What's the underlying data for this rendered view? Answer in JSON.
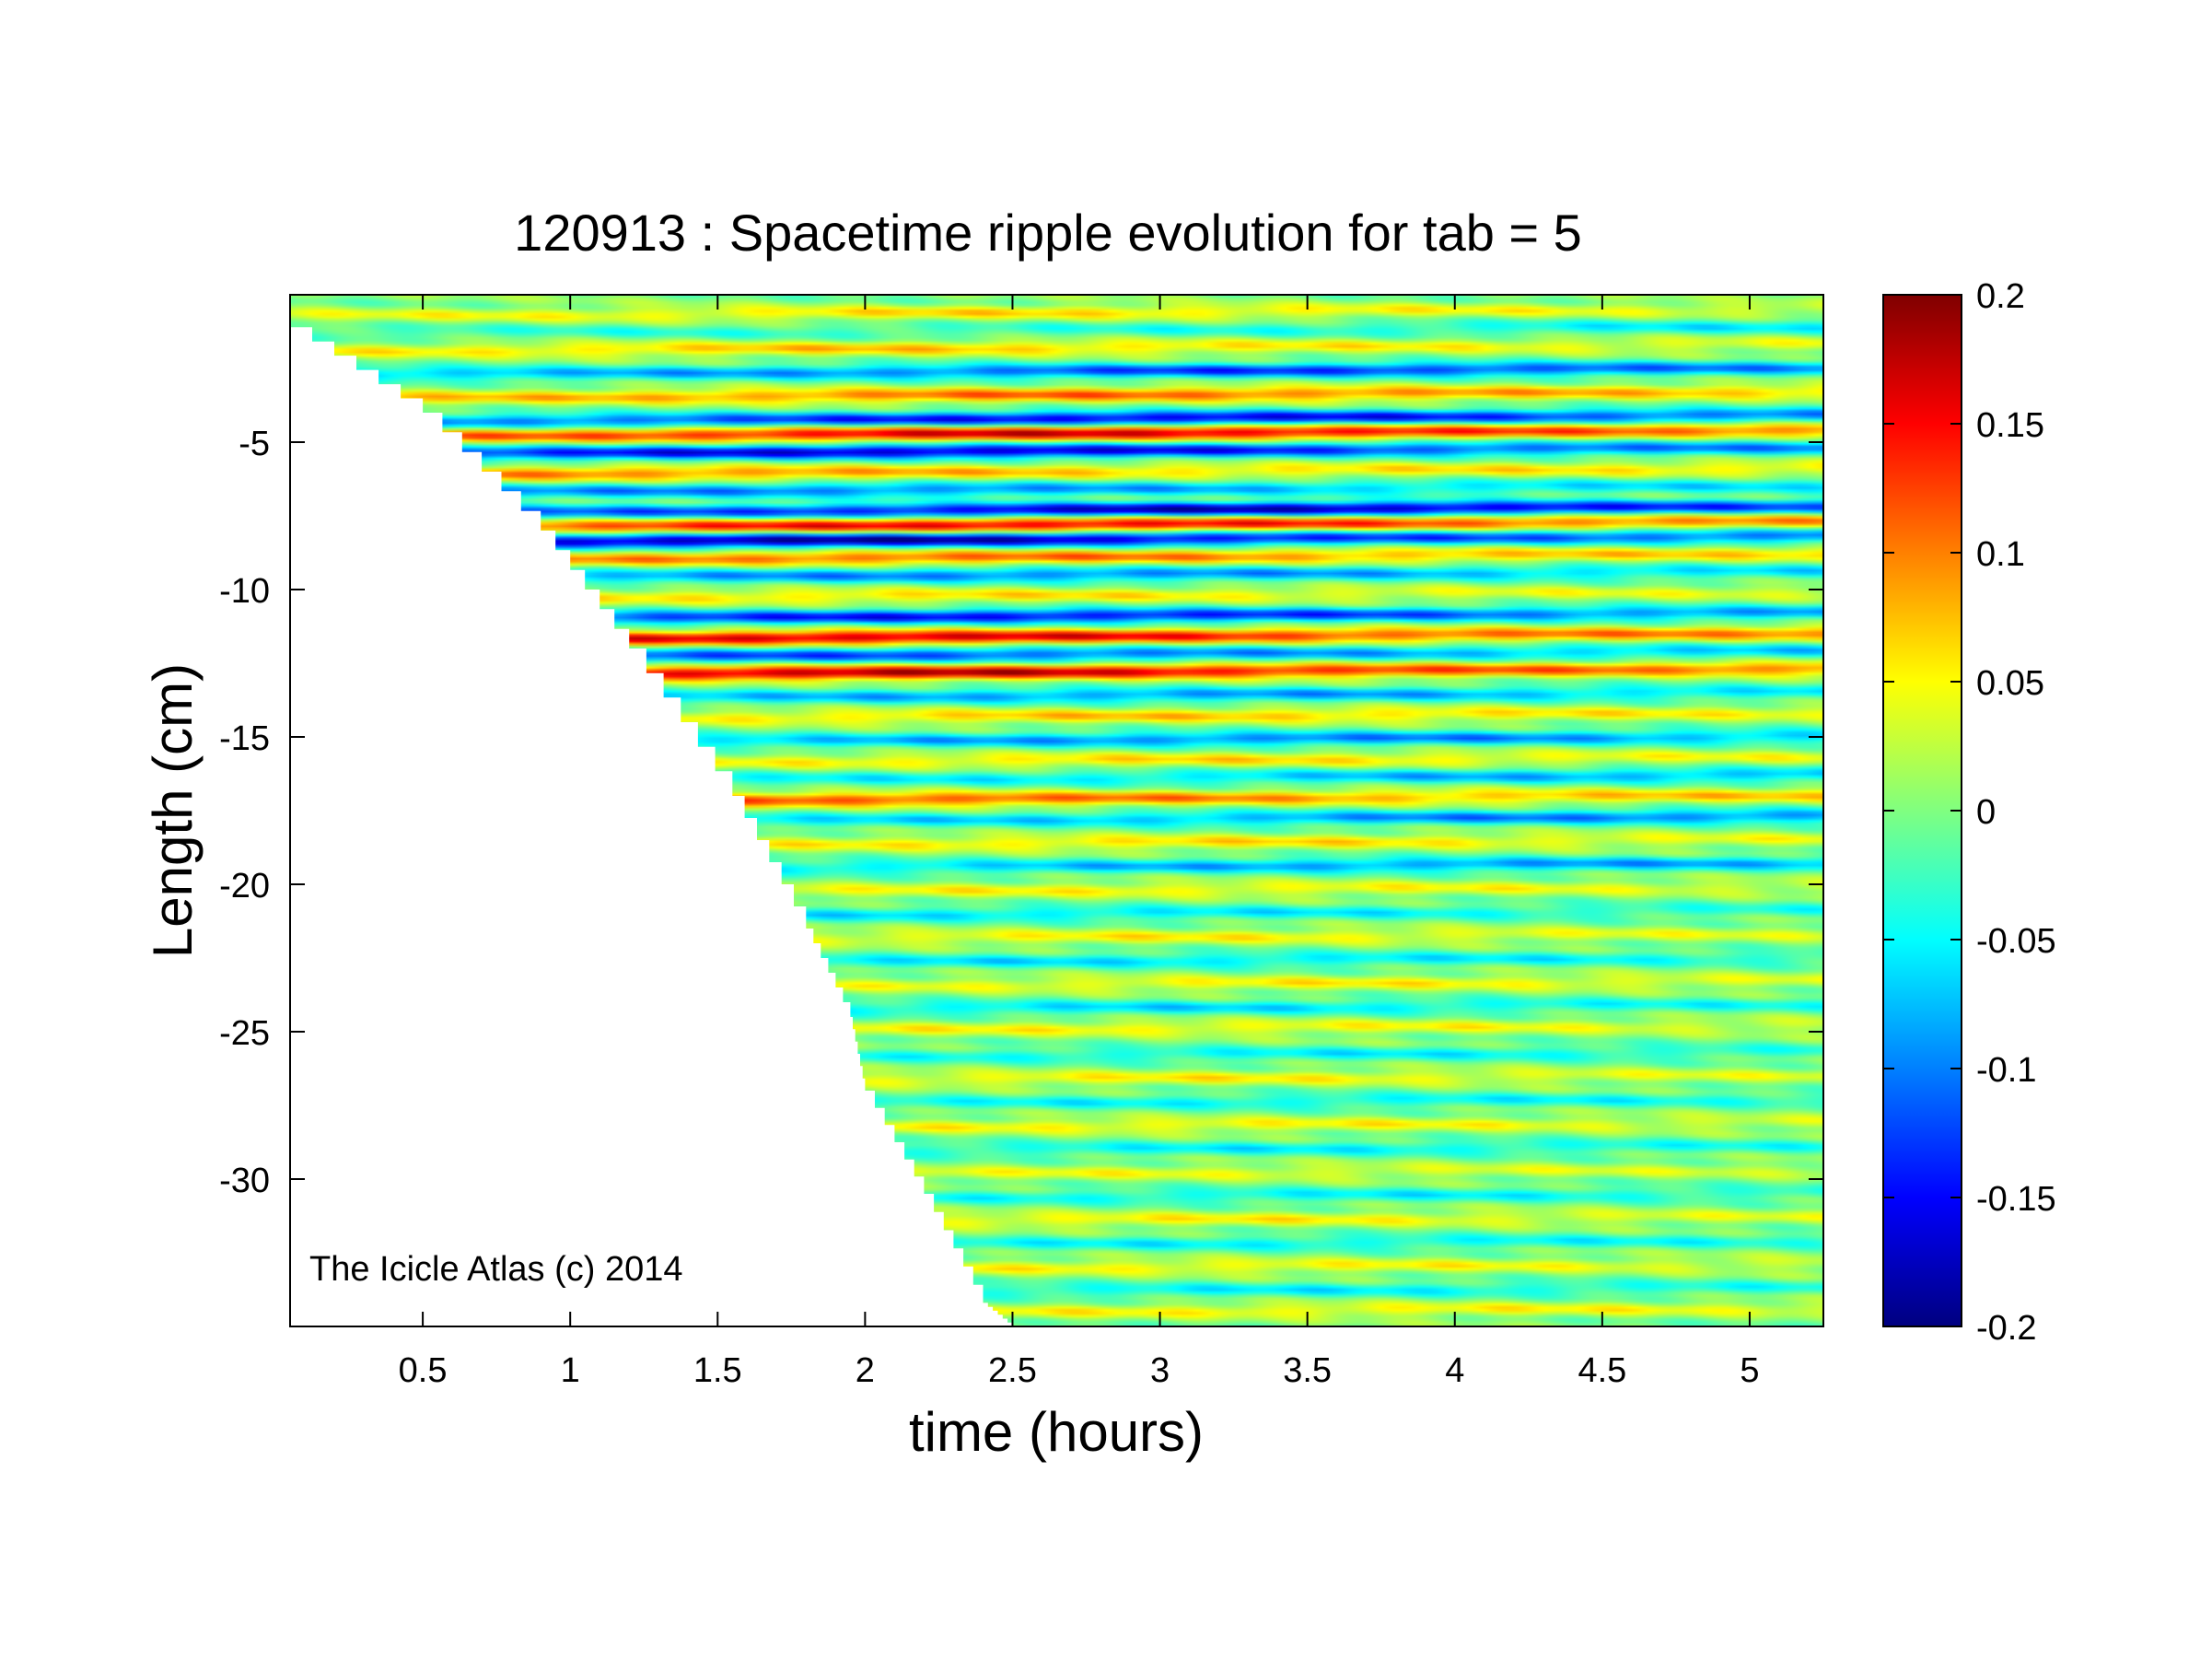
{
  "chart_data": {
    "type": "heatmap",
    "title": "120913 : Spacetime ripple evolution for tab = 5",
    "xlabel": "time (hours)",
    "ylabel": "Length (cm)",
    "annotation": "The Icicle Atlas (c) 2014",
    "xlim": [
      0.05,
      5.25
    ],
    "ylim": [
      -35,
      0
    ],
    "x_ticks": [
      0.5,
      1,
      1.5,
      2,
      2.5,
      3,
      3.5,
      4,
      4.5,
      5
    ],
    "x_tick_labels": [
      "0.5",
      "1",
      "1.5",
      "2",
      "2.5",
      "3",
      "3.5",
      "4",
      "4.5",
      "5"
    ],
    "y_ticks": [
      -5,
      -10,
      -15,
      -20,
      -25,
      -30
    ],
    "y_tick_labels": [
      "-5",
      "-10",
      "-15",
      "-20",
      "-25",
      "-30"
    ],
    "colorbar": {
      "colormap": "jet",
      "clim": [
        -0.2,
        0.2
      ],
      "ticks": [
        0.2,
        0.15,
        0.1,
        0.05,
        0,
        -0.05,
        -0.1,
        -0.15,
        -0.2
      ],
      "tick_labels": [
        "0.2",
        "0.15",
        "0.1",
        "0.05",
        "0",
        "-0.05",
        "-0.1",
        "-0.15",
        "-0.2"
      ]
    },
    "growth_front": {
      "description_hidden": true,
      "points": [
        [
          0.05,
          -1.1
        ],
        [
          0.5,
          -4.0
        ],
        [
          0.9,
          -8.0
        ],
        [
          1.2,
          -12.0
        ],
        [
          1.55,
          -17.0
        ],
        [
          1.8,
          -21.5
        ],
        [
          1.95,
          -24.5
        ],
        [
          2.0,
          -27.0
        ],
        [
          2.2,
          -30.5
        ],
        [
          2.4,
          -34.2
        ],
        [
          2.5,
          -35.0
        ]
      ]
    },
    "ripple_bands": [
      {
        "y": -0.6,
        "amp": 0.06,
        "t_peak": 2.5
      },
      {
        "y": -1.2,
        "amp": -0.05,
        "t_peak": 5.0
      },
      {
        "y": -1.8,
        "amp": 0.07,
        "t_peak": 2.0
      },
      {
        "y": -2.6,
        "amp": -0.13,
        "t_peak": 3.5
      },
      {
        "y": -3.4,
        "amp": 0.11,
        "t_peak": 2.8
      },
      {
        "y": -4.2,
        "amp": -0.16,
        "t_peak": 3.0
      },
      {
        "y": -4.7,
        "amp": 0.17,
        "t_peak": 2.7
      },
      {
        "y": -5.3,
        "amp": -0.17,
        "t_peak": 2.2
      },
      {
        "y": -6.0,
        "amp": 0.1,
        "t_peak": 0.9
      },
      {
        "y": -6.6,
        "amp": -0.1,
        "t_peak": 1.8
      },
      {
        "y": -7.3,
        "amp": -0.18,
        "t_peak": 3.3
      },
      {
        "y": -7.8,
        "amp": 0.16,
        "t_peak": 2.5
      },
      {
        "y": -8.3,
        "amp": -0.19,
        "t_peak": 1.9
      },
      {
        "y": -8.9,
        "amp": 0.11,
        "t_peak": 2.2
      },
      {
        "y": -9.5,
        "amp": -0.1,
        "t_peak": 2.5
      },
      {
        "y": -10.2,
        "amp": 0.06,
        "t_peak": 2.0
      },
      {
        "y": -10.9,
        "amp": -0.15,
        "t_peak": 2.5
      },
      {
        "y": -11.6,
        "amp": 0.17,
        "t_peak": 2.0
      },
      {
        "y": -12.2,
        "amp": -0.12,
        "t_peak": 1.9
      },
      {
        "y": -12.8,
        "amp": 0.18,
        "t_peak": 2.1
      },
      {
        "y": -13.6,
        "amp": -0.09,
        "t_peak": 3.0
      },
      {
        "y": -14.3,
        "amp": 0.07,
        "t_peak": 3.0
      },
      {
        "y": -15.1,
        "amp": -0.1,
        "t_peak": 3.5
      },
      {
        "y": -15.8,
        "amp": 0.06,
        "t_peak": 3.0
      },
      {
        "y": -16.4,
        "amp": -0.08,
        "t_peak": 4.5
      },
      {
        "y": -17.1,
        "amp": 0.12,
        "t_peak": 1.9
      },
      {
        "y": -17.8,
        "amp": -0.1,
        "t_peak": 4.5
      },
      {
        "y": -18.6,
        "amp": 0.06,
        "t_peak": 3.0
      },
      {
        "y": -19.4,
        "amp": -0.09,
        "t_peak": 4.0
      },
      {
        "y": -20.2,
        "amp": 0.05,
        "t_peak": 3.0
      },
      {
        "y": -21.0,
        "amp": -0.06,
        "t_peak": 2.5
      },
      {
        "y": -21.8,
        "amp": 0.05,
        "t_peak": 3.0
      },
      {
        "y": -22.6,
        "amp": -0.06,
        "t_peak": 3.0
      },
      {
        "y": -23.4,
        "amp": 0.05,
        "t_peak": 3.5
      },
      {
        "y": -24.2,
        "amp": -0.06,
        "t_peak": 3.0
      },
      {
        "y": -24.9,
        "amp": 0.05,
        "t_peak": 3.0
      },
      {
        "y": -25.8,
        "amp": -0.05,
        "t_peak": 3.5
      },
      {
        "y": -26.6,
        "amp": 0.05,
        "t_peak": 3.0
      },
      {
        "y": -27.4,
        "amp": -0.05,
        "t_peak": 3.5
      },
      {
        "y": -28.2,
        "amp": 0.05,
        "t_peak": 3.0
      },
      {
        "y": -29.0,
        "amp": -0.05,
        "t_peak": 3.5
      },
      {
        "y": -29.8,
        "amp": 0.04,
        "t_peak": 3.0
      },
      {
        "y": -30.6,
        "amp": -0.05,
        "t_peak": 3.5
      },
      {
        "y": -31.4,
        "amp": 0.05,
        "t_peak": 3.0
      },
      {
        "y": -32.2,
        "amp": -0.05,
        "t_peak": 3.5
      },
      {
        "y": -33.0,
        "amp": 0.05,
        "t_peak": 3.0
      },
      {
        "y": -33.8,
        "amp": -0.05,
        "t_peak": 3.5
      },
      {
        "y": -34.5,
        "amp": 0.05,
        "t_peak": 3.5
      }
    ]
  }
}
